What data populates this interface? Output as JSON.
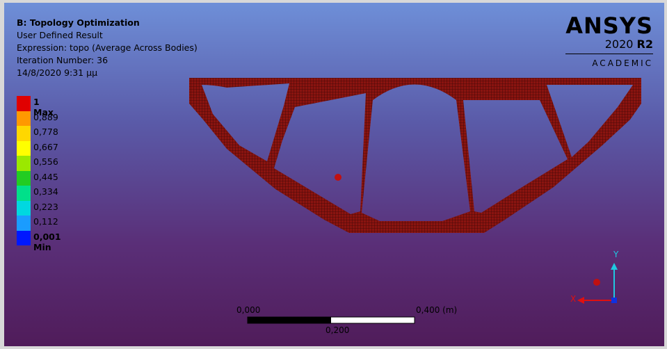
{
  "header": {
    "title": "B: Topology Optimization",
    "lines": [
      "User Defined Result",
      "Expression: topo (Average Across Bodies)",
      "Iteration Number: 36",
      "14/8/2020 9:31 μμ"
    ]
  },
  "legend": {
    "items": [
      {
        "label": "1 Max",
        "color": "#e00000"
      },
      {
        "label": "0,889",
        "color": "#ff9900"
      },
      {
        "label": "0,778",
        "color": "#ffd700"
      },
      {
        "label": "0,667",
        "color": "#ffff00"
      },
      {
        "label": "0,556",
        "color": "#9be800"
      },
      {
        "label": "0,445",
        "color": "#22cc22"
      },
      {
        "label": "0,334",
        "color": "#00e08a"
      },
      {
        "label": "0,223",
        "color": "#00d8e0"
      },
      {
        "label": "0,112",
        "color": "#1a9cff"
      },
      {
        "label": "0,001 Min",
        "color": "#0018ff"
      }
    ]
  },
  "logo": {
    "brand": "ANSYS",
    "year": "2020",
    "release": "R2",
    "edition": "ACADEMIC"
  },
  "scale_bar": {
    "start": "0,000",
    "end": "0,400 (m)",
    "middle": "0,200"
  },
  "triad": {
    "y": "Y",
    "x": "X"
  }
}
